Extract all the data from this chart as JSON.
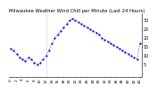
{
  "title": "Milwaukee Weather Wind Chill per Minute (Last 24 Hours)",
  "line_color": "#0000cc",
  "bg_color": "#ffffff",
  "plot_bg": "#ffffff",
  "y_values": [
    14,
    13,
    11,
    9,
    8,
    7,
    9,
    8,
    6,
    5,
    6,
    8,
    10,
    13,
    17,
    20,
    22,
    24,
    26,
    28,
    30,
    31,
    30,
    29,
    28,
    27,
    26,
    25,
    24,
    23,
    22,
    20,
    19,
    18,
    17,
    16,
    15,
    14,
    13,
    12,
    11,
    10,
    9,
    8,
    17
  ],
  "ylim": [
    -2,
    34
  ],
  "yticks": [
    5,
    10,
    15,
    20,
    25,
    30
  ],
  "ylabel_fontsize": 3.5,
  "xlabel_fontsize": 3.0,
  "title_fontsize": 3.8,
  "vline_x": 12,
  "marker_size": 1.2,
  "line_width": 0.5
}
